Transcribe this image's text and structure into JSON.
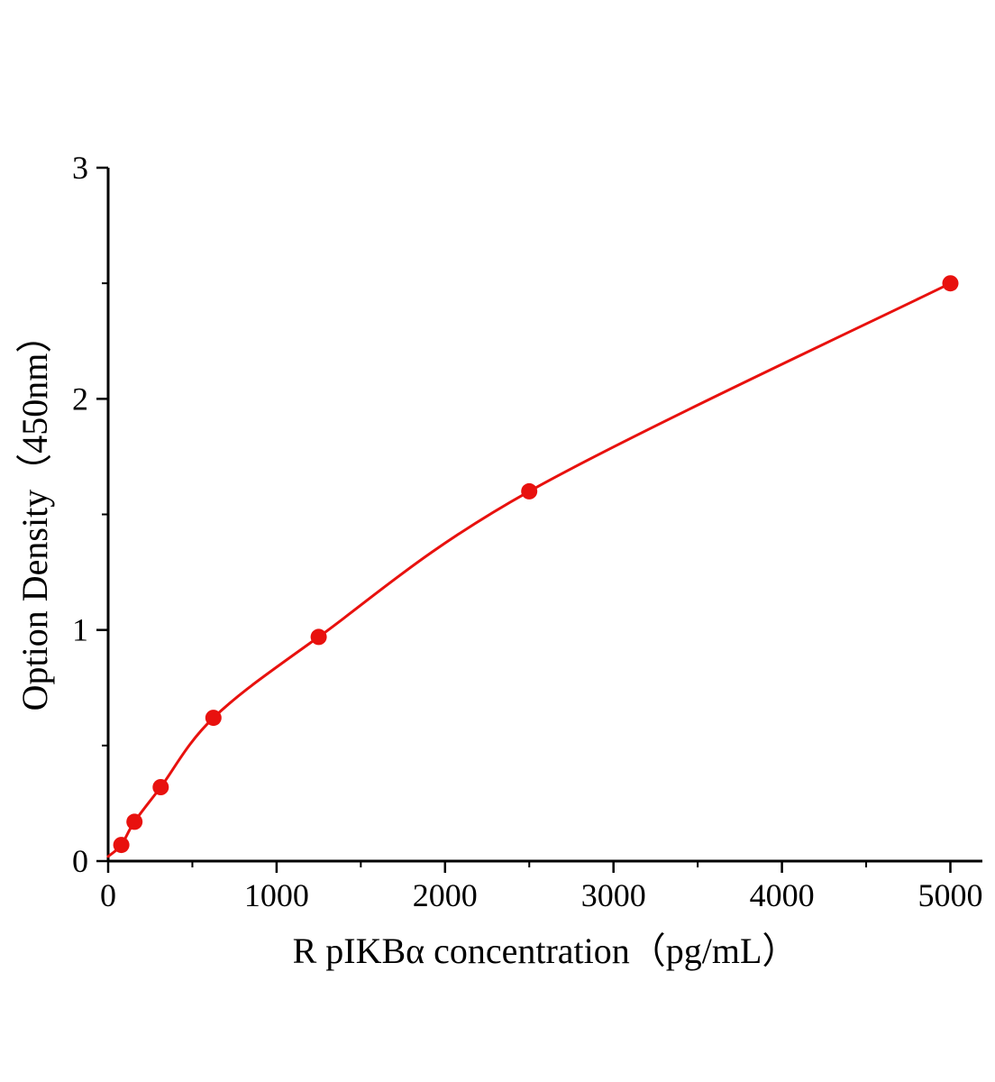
{
  "figure": {
    "background": "#ffffff"
  },
  "chart_data": {
    "type": "line",
    "title": "",
    "xlabel": "R pIKBα  concentration（pg/mL）",
    "ylabel": "Option Density（450nm）",
    "xlim": [
      0,
      5190
    ],
    "ylim": [
      0,
      3
    ],
    "x_ticks": [
      0,
      1000,
      2000,
      3000,
      4000,
      5000
    ],
    "y_ticks": [
      0,
      1,
      2,
      3
    ],
    "x_minor_step": 500,
    "y_minor_step": 0.5,
    "points": [
      [
        78,
        0.07
      ],
      [
        156,
        0.17
      ],
      [
        312,
        0.32
      ],
      [
        625,
        0.62
      ],
      [
        1250,
        0.97
      ],
      [
        2500,
        1.6
      ],
      [
        5000,
        2.5
      ]
    ],
    "curve": [
      [
        0,
        0.02
      ],
      [
        78,
        0.07
      ],
      [
        156,
        0.17
      ],
      [
        312,
        0.32
      ],
      [
        625,
        0.62
      ],
      [
        1250,
        0.97
      ],
      [
        2500,
        1.6
      ],
      [
        5000,
        2.5
      ]
    ],
    "line_color": "#e8110e",
    "marker_color": "#e8110e",
    "marker_radius": 9,
    "axis_color": "#000000",
    "legend": false,
    "grid": false
  }
}
